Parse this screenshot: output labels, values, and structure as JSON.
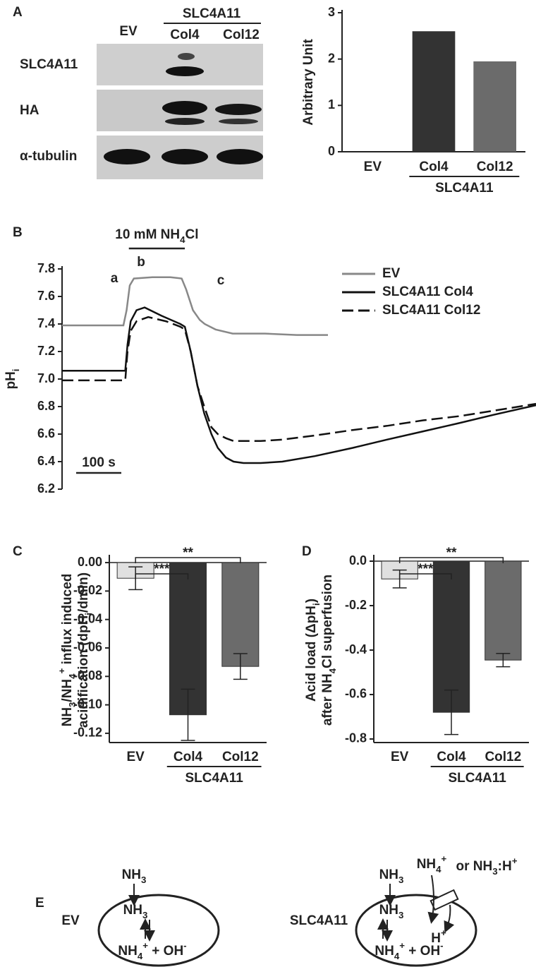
{
  "figure": {
    "panel_labels": [
      "A",
      "B",
      "C",
      "D",
      "E"
    ]
  },
  "blot": {
    "lanes": [
      "EV",
      "Col4",
      "Col12"
    ],
    "group_label": "SLC4A11",
    "rows": [
      "SLC4A11",
      "HA",
      "α-tubulin"
    ]
  },
  "chart_data": [
    {
      "type": "bar",
      "ylabel": "Arbitrary Unit",
      "categories": [
        "EV",
        "Col4",
        "Col12"
      ],
      "values": [
        0,
        2.6,
        1.95
      ],
      "colors": [
        "#d9d9d9",
        "#333333",
        "#6b6b6b"
      ],
      "ylim": [
        0,
        3
      ],
      "yticks": [
        0,
        1,
        2,
        3
      ],
      "group_label": "SLC4A11"
    },
    {
      "type": "line",
      "ylabel": [
        {
          "text": "pH"
        },
        {
          "sub": "i"
        }
      ],
      "xlim": [
        0,
        1050
      ],
      "ylim": [
        6.2,
        7.8
      ],
      "yticks": [
        6.2,
        6.4,
        6.6,
        6.8,
        {
          "value": 7,
          "label": "7.0"
        },
        7.2,
        7.4,
        7.6,
        7.8
      ],
      "series": [
        {
          "name": "EV",
          "color": "#888888",
          "dash": false,
          "x": [
            0,
            136,
            143,
            150,
            159,
            200,
            240,
            265,
            275,
            290,
            305,
            316,
            340,
            378,
            450,
            520,
            589
          ],
          "values": [
            7.39,
            7.39,
            7.5,
            7.68,
            7.73,
            7.74,
            7.74,
            7.73,
            7.65,
            7.5,
            7.43,
            7.4,
            7.36,
            7.33,
            7.33,
            7.32,
            7.32
          ]
        },
        {
          "name": "SLC4A11 Col4",
          "color": "#111111",
          "dash": false,
          "x": [
            0,
            140,
            145,
            152,
            165,
            183,
            220,
            262,
            272,
            285,
            300,
            315,
            331,
            345,
            363,
            380,
            402,
            440,
            488,
            560,
            644,
            720,
            800,
            880,
            956,
            1050
          ],
          "values": [
            7.06,
            7.06,
            7.25,
            7.42,
            7.5,
            7.52,
            7.46,
            7.4,
            7.38,
            7.2,
            6.95,
            6.75,
            6.6,
            6.5,
            6.43,
            6.4,
            6.39,
            6.39,
            6.4,
            6.44,
            6.5,
            6.56,
            6.62,
            6.68,
            6.74,
            6.81
          ]
        },
        {
          "name": "SLC4A11 Col12",
          "color": "#111111",
          "dash": true,
          "x": [
            0,
            140,
            145,
            152,
            165,
            191,
            230,
            262,
            272,
            285,
            300,
            315,
            331,
            345,
            363,
            380,
            402,
            440,
            488,
            560,
            644,
            720,
            800,
            880,
            956,
            1050
          ],
          "values": [
            6.99,
            6.99,
            7.2,
            7.35,
            7.42,
            7.45,
            7.42,
            7.38,
            7.36,
            7.2,
            6.95,
            6.8,
            6.65,
            6.6,
            6.57,
            6.55,
            6.55,
            6.55,
            6.56,
            6.59,
            6.63,
            6.66,
            6.7,
            6.73,
            6.77,
            6.82
          ]
        }
      ],
      "stimulus": {
        "label": [
          {
            "text": "10 mM NH"
          },
          {
            "sub": "4"
          },
          {
            "text": "Cl"
          }
        ],
        "start": 148,
        "end": 272
      },
      "annotations": [
        "a",
        "b",
        "c"
      ],
      "scale_bar": {
        "label": "100 s",
        "length": 100
      }
    },
    {
      "type": "bar",
      "ylabel": [
        [
          {
            "text": "NH"
          },
          {
            "sub": "3"
          },
          {
            "text": "/NH"
          },
          {
            "sub": "4"
          },
          {
            "sup": "+"
          },
          {
            "text": " influx induced"
          }
        ],
        [
          {
            "text": "acidification (dpH"
          },
          {
            "sub": "i"
          },
          {
            "text": "/dmin)"
          }
        ]
      ],
      "categories": [
        "EV",
        "Col4",
        "Col12"
      ],
      "values": [
        -0.011,
        -0.107,
        -0.073
      ],
      "errors": [
        0.008,
        0.018,
        0.009
      ],
      "colors": [
        "#e0e0e0",
        "#333333",
        "#6b6b6b"
      ],
      "ylim": [
        -0.1265,
        0.0035
      ],
      "yticks": [
        {
          "value": 0,
          "label": "0.00"
        },
        -0.02,
        -0.04,
        -0.06,
        -0.08,
        {
          "value": -0.1,
          "label": "-0.10"
        },
        -0.12
      ],
      "group_label": "SLC4A11",
      "significance": [
        "***",
        "**"
      ]
    },
    {
      "type": "bar",
      "ylabel": [
        [
          {
            "text": "Acid load (ΔpH"
          },
          {
            "sub": "i"
          },
          {
            "text": ")"
          }
        ],
        [
          {
            "text": "after NH"
          },
          {
            "sub": "4"
          },
          {
            "text": "Cl superfusion"
          }
        ]
      ],
      "categories": [
        "EV",
        "Col4",
        "Col12"
      ],
      "values": [
        -0.08,
        -0.68,
        -0.445
      ],
      "errors": [
        0.04,
        0.1,
        0.03
      ],
      "colors": [
        "#e0e0e0",
        "#333333",
        "#6b6b6b"
      ],
      "ylim": [
        -0.816,
        0.016
      ],
      "yticks": [
        {
          "value": 0,
          "label": "0.0"
        },
        -0.2,
        -0.4,
        -0.6,
        -0.8
      ],
      "group_label": "SLC4A11",
      "significance": [
        "***",
        "**"
      ]
    }
  ],
  "diagram": {
    "ev": {
      "title": "EV",
      "outside": [
        {
          "text": "NH"
        },
        {
          "sub": "3"
        }
      ],
      "inside": [
        {
          "text": "NH"
        },
        {
          "sub": "3"
        }
      ],
      "products": [
        {
          "text": "NH"
        },
        {
          "sub": "4"
        },
        {
          "sup": "+"
        },
        {
          "text": " + OH"
        },
        {
          "sup": "-"
        }
      ]
    },
    "slc": {
      "title": "SLC4A11",
      "outside": [
        {
          "text": "NH"
        },
        {
          "sub": "3"
        }
      ],
      "substrate": [
        {
          "text": "NH"
        },
        {
          "sub": "4"
        },
        {
          "sup": "+"
        }
      ],
      "alternative": [
        {
          "text": "or NH"
        },
        {
          "sub": "3"
        },
        {
          "text": ":H"
        },
        {
          "sup": "+"
        }
      ],
      "proton": [
        {
          "text": "H"
        },
        {
          "sup": "+"
        }
      ],
      "inside": [
        {
          "text": "NH"
        },
        {
          "sub": "3"
        }
      ],
      "products": [
        {
          "text": "NH"
        },
        {
          "sub": "4"
        },
        {
          "sup": "+"
        },
        {
          "text": " + OH"
        },
        {
          "sup": "-"
        }
      ]
    }
  }
}
